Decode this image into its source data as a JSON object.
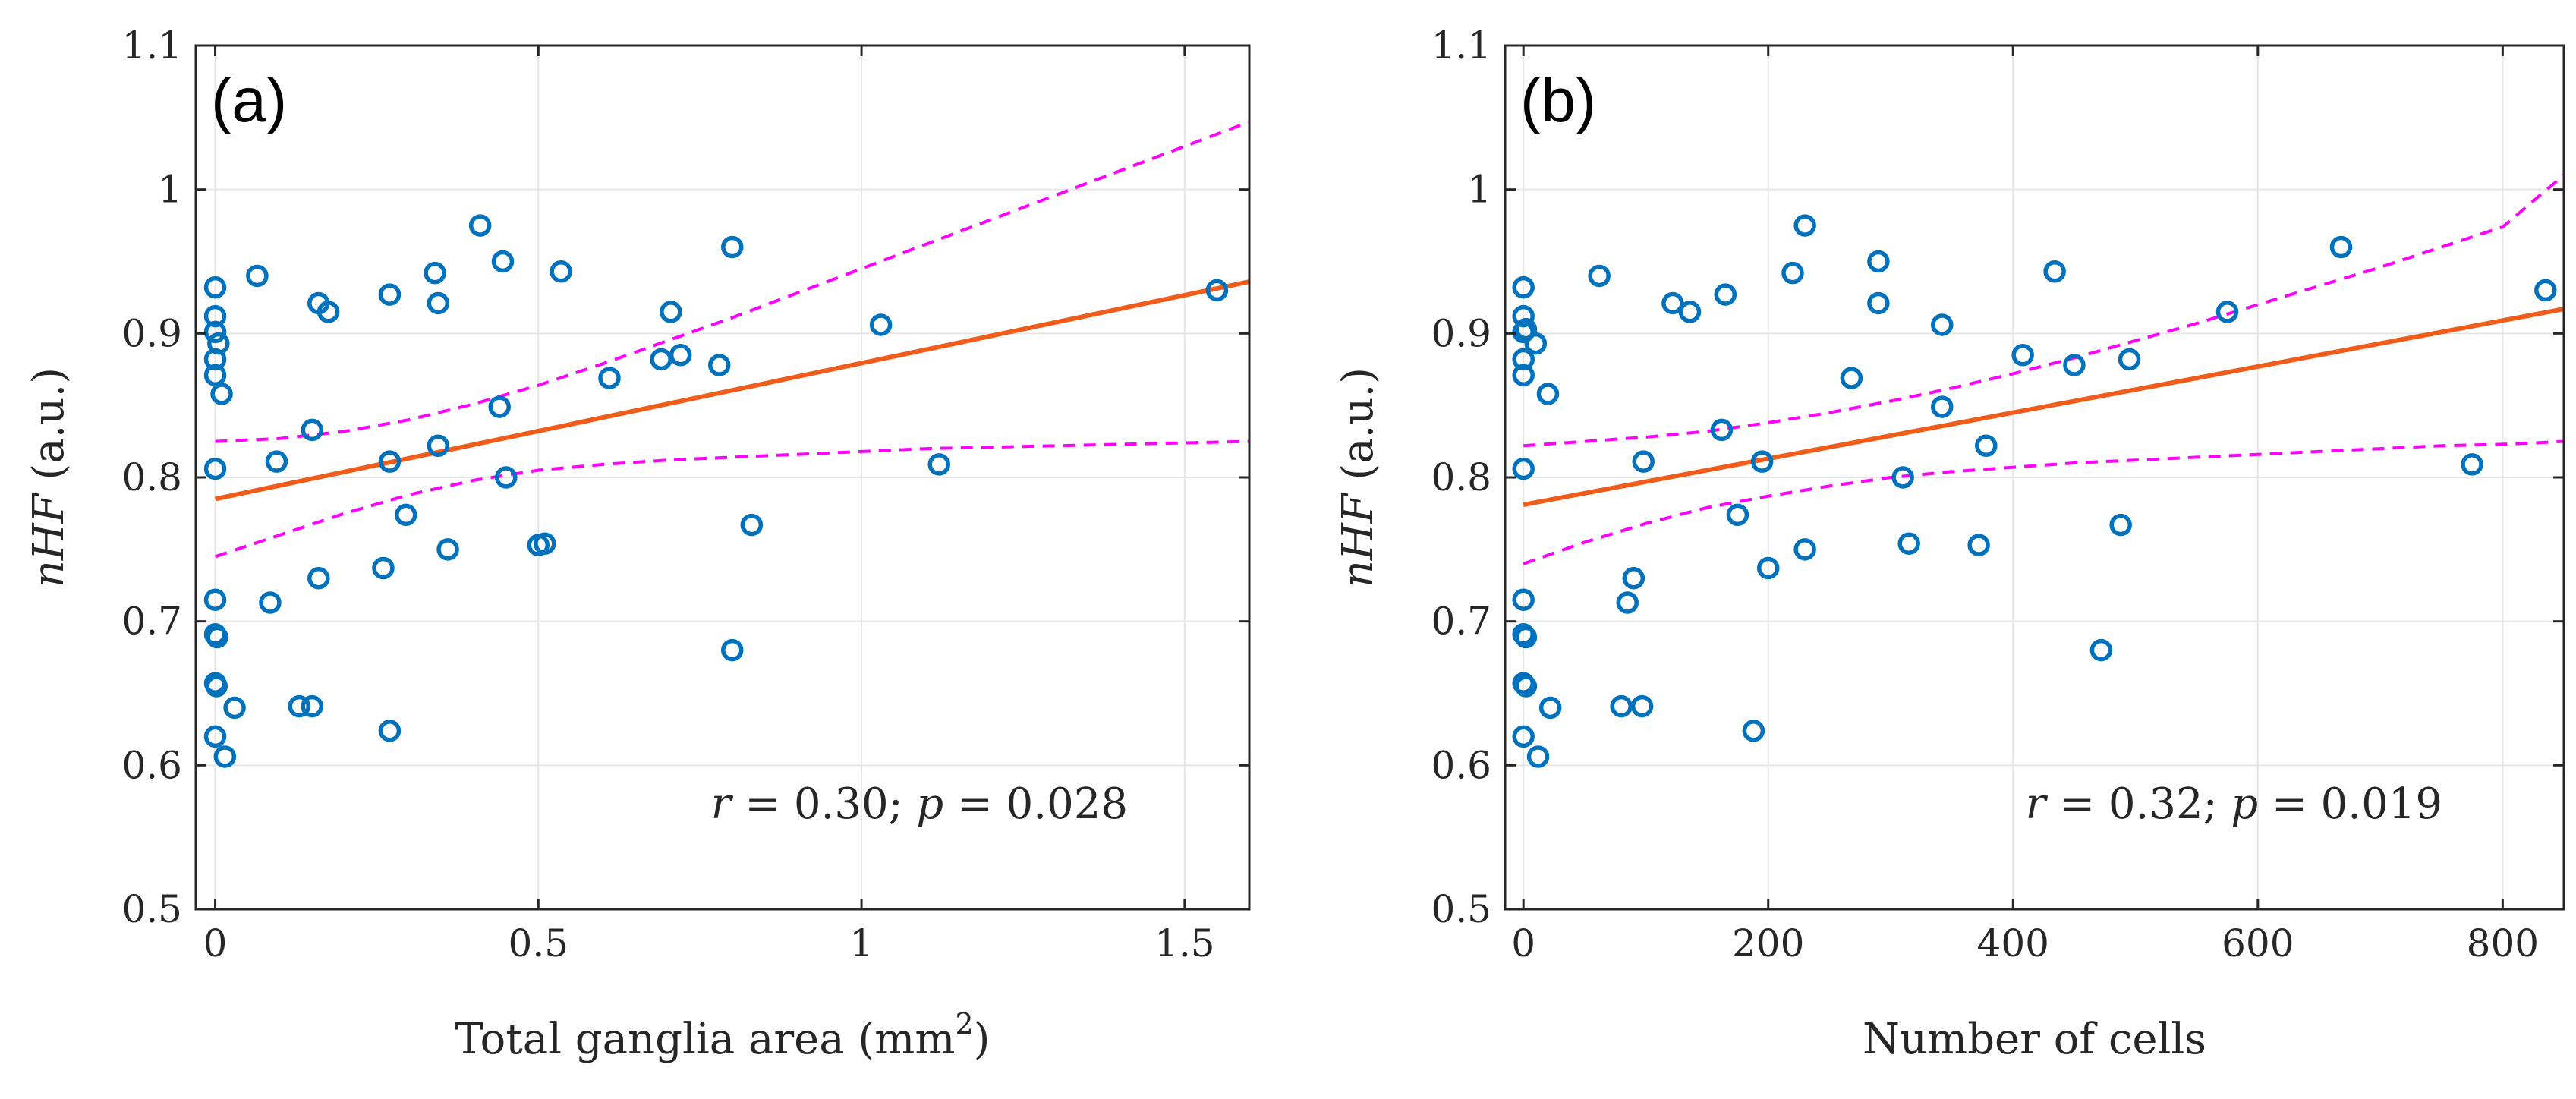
{
  "chart_data": [
    {
      "type": "scatter",
      "panel_label": "(a)",
      "xlabel": "Total ganglia area (mm",
      "xlabel_sup": "2",
      "xlabel_close": ")",
      "ylabel_italic": "nHF",
      "ylabel_rest": " (a.u.)",
      "xlim": [
        -0.03,
        1.6
      ],
      "ylim": [
        0.5,
        1.1
      ],
      "xticks": [
        0,
        0.5,
        1,
        1.5
      ],
      "xtick_labels": [
        "0",
        "0.5",
        "1",
        "1.5"
      ],
      "yticks": [
        0.5,
        0.6,
        0.7,
        0.8,
        0.9,
        1.0,
        1.1
      ],
      "ytick_labels": [
        "0.5",
        "0.6",
        "0.7",
        "0.8",
        "0.9",
        "1",
        "1.1"
      ],
      "grid": true,
      "annotation": {
        "r_sym": "r",
        "r_text": " = 0.30; ",
        "p_sym": "p",
        "p_text": " = 0.028"
      },
      "points": [
        [
          0.0,
          0.932
        ],
        [
          0.0,
          0.912
        ],
        [
          0.0,
          0.901
        ],
        [
          0.0,
          0.882
        ],
        [
          0.0,
          0.871
        ],
        [
          0.005,
          0.893
        ],
        [
          0.01,
          0.858
        ],
        [
          0.0,
          0.806
        ],
        [
          0.0,
          0.715
        ],
        [
          0.0,
          0.691
        ],
        [
          0.003,
          0.689
        ],
        [
          0.0,
          0.657
        ],
        [
          0.002,
          0.655
        ],
        [
          0.0,
          0.62
        ],
        [
          0.015,
          0.606
        ],
        [
          0.03,
          0.64
        ],
        [
          0.065,
          0.94
        ],
        [
          0.095,
          0.811
        ],
        [
          0.085,
          0.713
        ],
        [
          0.13,
          0.641
        ],
        [
          0.15,
          0.641
        ],
        [
          0.15,
          0.833
        ],
        [
          0.16,
          0.921
        ],
        [
          0.175,
          0.915
        ],
        [
          0.16,
          0.73
        ],
        [
          0.27,
          0.927
        ],
        [
          0.27,
          0.811
        ],
        [
          0.26,
          0.737
        ],
        [
          0.27,
          0.624
        ],
        [
          0.295,
          0.774
        ],
        [
          0.34,
          0.942
        ],
        [
          0.345,
          0.921
        ],
        [
          0.345,
          0.822
        ],
        [
          0.36,
          0.75
        ],
        [
          0.41,
          0.975
        ],
        [
          0.44,
          0.849
        ],
        [
          0.445,
          0.95
        ],
        [
          0.45,
          0.8
        ],
        [
          0.5,
          0.753
        ],
        [
          0.51,
          0.754
        ],
        [
          0.535,
          0.943
        ],
        [
          0.61,
          0.869
        ],
        [
          0.69,
          0.882
        ],
        [
          0.705,
          0.915
        ],
        [
          0.72,
          0.885
        ],
        [
          0.78,
          0.878
        ],
        [
          0.8,
          0.96
        ],
        [
          0.8,
          0.68
        ],
        [
          0.83,
          0.767
        ],
        [
          1.03,
          0.906
        ],
        [
          1.12,
          0.809
        ],
        [
          1.55,
          0.93
        ]
      ],
      "fit": {
        "x": [
          0.0,
          1.6
        ],
        "y": [
          0.785,
          0.936
        ]
      },
      "ci_upper": {
        "x": [
          0.0,
          0.1,
          0.2,
          0.3,
          0.4,
          0.5,
          0.6,
          0.7,
          0.8,
          0.9,
          1.0,
          1.1,
          1.2,
          1.3,
          1.4,
          1.5,
          1.6
        ],
        "y": [
          0.825,
          0.827,
          0.832,
          0.84,
          0.851,
          0.864,
          0.879,
          0.895,
          0.911,
          0.928,
          0.945,
          0.962,
          0.979,
          0.996,
          1.013,
          1.03,
          1.047
        ]
      },
      "ci_lower": {
        "x": [
          0.0,
          0.1,
          0.2,
          0.3,
          0.4,
          0.5,
          0.6,
          0.7,
          0.8,
          0.9,
          1.0,
          1.1,
          1.2,
          1.3,
          1.4,
          1.5,
          1.6
        ],
        "y": [
          0.745,
          0.76,
          0.775,
          0.788,
          0.798,
          0.805,
          0.809,
          0.812,
          0.814,
          0.816,
          0.818,
          0.82,
          0.821,
          0.822,
          0.823,
          0.824,
          0.825
        ]
      },
      "colors": {
        "points": "#0072BD",
        "fit": "#F25C1A",
        "ci": "#FF00FF",
        "grid": "#E6E6E6",
        "axes": "#262626"
      }
    },
    {
      "type": "scatter",
      "panel_label": "(b)",
      "xlabel": "Number of cells",
      "ylabel_italic": "nHF",
      "ylabel_rest": " (a.u.)",
      "xlim": [
        -15,
        850
      ],
      "ylim": [
        0.5,
        1.1
      ],
      "xticks": [
        0,
        200,
        400,
        600,
        800
      ],
      "xtick_labels": [
        "0",
        "200",
        "400",
        "600",
        "800"
      ],
      "yticks": [
        0.5,
        0.6,
        0.7,
        0.8,
        0.9,
        1.0,
        1.1
      ],
      "ytick_labels": [
        "0.5",
        "0.6",
        "0.7",
        "0.8",
        "0.9",
        "1",
        "1.1"
      ],
      "grid": true,
      "annotation": {
        "r_sym": "r",
        "r_text": " = 0.32; ",
        "p_sym": "p",
        "p_text": " = 0.019"
      },
      "points": [
        [
          0,
          0.932
        ],
        [
          0,
          0.912
        ],
        [
          0,
          0.901
        ],
        [
          2,
          0.903
        ],
        [
          0,
          0.882
        ],
        [
          0,
          0.871
        ],
        [
          10,
          0.893
        ],
        [
          20,
          0.858
        ],
        [
          0,
          0.806
        ],
        [
          0,
          0.715
        ],
        [
          0,
          0.691
        ],
        [
          2,
          0.689
        ],
        [
          0,
          0.657
        ],
        [
          2,
          0.655
        ],
        [
          0,
          0.62
        ],
        [
          12,
          0.606
        ],
        [
          22,
          0.64
        ],
        [
          62,
          0.94
        ],
        [
          98,
          0.811
        ],
        [
          85,
          0.713
        ],
        [
          90,
          0.73
        ],
        [
          80,
          0.641
        ],
        [
          97,
          0.641
        ],
        [
          122,
          0.921
        ],
        [
          136,
          0.915
        ],
        [
          162,
          0.833
        ],
        [
          165,
          0.927
        ],
        [
          175,
          0.774
        ],
        [
          188,
          0.624
        ],
        [
          195,
          0.811
        ],
        [
          200,
          0.737
        ],
        [
          220,
          0.942
        ],
        [
          230,
          0.975
        ],
        [
          230,
          0.75
        ],
        [
          268,
          0.869
        ],
        [
          290,
          0.95
        ],
        [
          290,
          0.921
        ],
        [
          310,
          0.8
        ],
        [
          315,
          0.754
        ],
        [
          342,
          0.906
        ],
        [
          342,
          0.849
        ],
        [
          372,
          0.753
        ],
        [
          378,
          0.822
        ],
        [
          408,
          0.885
        ],
        [
          434,
          0.943
        ],
        [
          450,
          0.878
        ],
        [
          472,
          0.68
        ],
        [
          488,
          0.767
        ],
        [
          495,
          0.882
        ],
        [
          575,
          0.915
        ],
        [
          668,
          0.96
        ],
        [
          775,
          0.809
        ],
        [
          835,
          0.93
        ]
      ],
      "fit": {
        "x": [
          0,
          850
        ],
        "y": [
          0.781,
          0.917
        ]
      },
      "ci_upper": {
        "x": [
          0,
          50,
          100,
          150,
          200,
          250,
          300,
          350,
          400,
          450,
          500,
          550,
          600,
          650,
          700,
          750,
          800,
          850
        ],
        "y": [
          0.822,
          0.825,
          0.828,
          0.832,
          0.838,
          0.845,
          0.853,
          0.862,
          0.872,
          0.883,
          0.895,
          0.907,
          0.92,
          0.933,
          0.946,
          0.96,
          0.974,
          1.01
        ]
      },
      "ci_lower": {
        "x": [
          0,
          50,
          100,
          150,
          200,
          250,
          300,
          350,
          400,
          450,
          500,
          550,
          600,
          650,
          700,
          750,
          800,
          850
        ],
        "y": [
          0.74,
          0.755,
          0.768,
          0.779,
          0.787,
          0.794,
          0.8,
          0.804,
          0.807,
          0.81,
          0.812,
          0.814,
          0.816,
          0.818,
          0.82,
          0.822,
          0.823,
          0.825
        ]
      },
      "colors": {
        "points": "#0072BD",
        "fit": "#F25C1A",
        "ci": "#FF00FF",
        "grid": "#E6E6E6",
        "axes": "#262626"
      }
    }
  ]
}
